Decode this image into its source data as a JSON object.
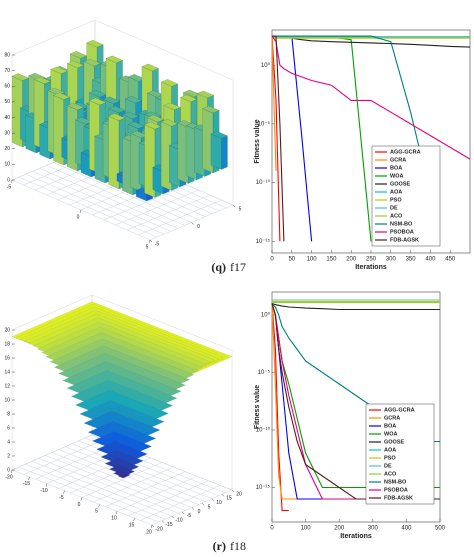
{
  "captions": [
    {
      "letter": "(q)",
      "text": "f17"
    },
    {
      "letter": "(r)",
      "text": "f18"
    }
  ],
  "chart_data": [
    {
      "type": "surface3d",
      "colormap": [
        "#352a87",
        "#0f5cdd",
        "#1aa6b7",
        "#7cbf7b",
        "#f9fb0e"
      ],
      "zlim": [
        0,
        80
      ],
      "zticks": [
        0,
        10,
        20,
        30,
        40,
        50,
        60,
        70,
        80
      ],
      "xlim": [
        -5,
        5
      ],
      "xticks": [
        -5,
        0,
        5
      ],
      "ylim": [
        -5,
        5
      ],
      "yticks": [
        -5,
        0,
        5
      ],
      "shape": "bars"
    },
    {
      "type": "line",
      "xlabel": "Iterations",
      "ylabel": "Fitness value",
      "log_y": true,
      "legend": "lower right",
      "x": [
        0,
        10,
        20,
        30,
        50,
        75,
        100,
        150,
        200,
        250,
        300,
        350,
        400,
        450,
        500
      ],
      "xlim": [
        0,
        500
      ],
      "xticks": [
        0,
        50,
        100,
        150,
        200,
        250,
        300,
        350,
        400,
        450
      ],
      "ylim": [
        1e-16,
        1000
      ],
      "yticks": [
        {
          "value": 1,
          "label": "10⁰"
        },
        {
          "value": 1e-05,
          "label": "10⁻⁵"
        },
        {
          "value": 1e-10,
          "label": "10⁻¹⁰"
        },
        {
          "value": 1e-15,
          "label": "10⁻¹⁵"
        }
      ],
      "series": [
        {
          "name": "AGG-GCRA",
          "color": "#ff0000",
          "values": [
            300,
            0.001,
            1e-15,
            null,
            null,
            null,
            null,
            null,
            null,
            null,
            null,
            null,
            null,
            null,
            null
          ]
        },
        {
          "name": "GCRA",
          "color": "#ff8c00",
          "values": [
            300,
            1e-09,
            null,
            null,
            null,
            null,
            null,
            null,
            null,
            null,
            null,
            null,
            null,
            null,
            null
          ]
        },
        {
          "name": "BOA",
          "color": "#0000ff",
          "values": [
            300,
            300,
            300,
            300,
            300,
            1e-06,
            1e-15,
            null,
            null,
            null,
            null,
            null,
            null,
            null,
            null
          ]
        },
        {
          "name": "WOA",
          "color": "#00a000",
          "values": [
            300,
            300,
            300,
            300,
            300,
            300,
            300,
            250,
            150,
            1e-15,
            null,
            null,
            null,
            null,
            null
          ]
        },
        {
          "name": "GOOSE",
          "color": "#222222",
          "values": [
            300,
            300,
            300,
            250,
            200,
            150,
            120,
            100,
            90,
            80,
            70,
            60,
            50,
            40,
            35
          ]
        },
        {
          "name": "AOA",
          "color": "#00c8c8",
          "values": [
            250,
            250,
            250,
            250,
            250,
            250,
            250,
            250,
            250,
            250,
            250,
            250,
            250,
            250,
            250
          ]
        },
        {
          "name": "PSO",
          "color": "#c8c800",
          "values": [
            200,
            200,
            200,
            200,
            200,
            200,
            200,
            200,
            200,
            200,
            200,
            200,
            200,
            200,
            200
          ]
        },
        {
          "name": "DE",
          "color": "#4dbeee",
          "values": [
            280,
            280,
            280,
            280,
            280,
            280,
            280,
            280,
            280,
            280,
            280,
            280,
            280,
            280,
            280
          ]
        },
        {
          "name": "ACO",
          "color": "#9acd32",
          "values": [
            220,
            220,
            220,
            220,
            220,
            220,
            220,
            220,
            220,
            220,
            220,
            220,
            220,
            220,
            220
          ]
        },
        {
          "name": "NSM-BO",
          "color": "#007f7f",
          "values": [
            300,
            300,
            300,
            300,
            300,
            300,
            300,
            300,
            300,
            300,
            100,
            0.0001,
            1e-11,
            null,
            null
          ]
        },
        {
          "name": "PSOBOA",
          "color": "#e6007e",
          "values": [
            300,
            100,
            1,
            0.5,
            0.2,
            0.1,
            0.05,
            0.02,
            0.001,
            0.001,
            0.0001,
            1e-05,
            1e-06,
            1e-07,
            1e-08
          ]
        },
        {
          "name": "FDB-AGSK",
          "color": "#5b1a1a",
          "values": [
            300,
            300,
            1e-05,
            1e-15,
            null,
            null,
            null,
            null,
            null,
            null,
            null,
            null,
            null,
            null,
            null
          ]
        }
      ]
    },
    {
      "type": "surface3d",
      "colormap": [
        "#352a87",
        "#0f5cdd",
        "#1aa6b7",
        "#7cbf7b",
        "#f9fb0e"
      ],
      "zlim": [
        0,
        20
      ],
      "zticks": [
        0,
        2,
        4,
        6,
        8,
        10,
        12,
        14,
        16,
        18,
        20
      ],
      "xlim": [
        -20,
        20
      ],
      "xticks": [
        -20,
        -15,
        -10,
        -5,
        0,
        5,
        10,
        15,
        20
      ],
      "ylim": [
        -20,
        20
      ],
      "yticks": [
        -20,
        -15,
        -10,
        -5,
        0,
        5,
        10,
        15,
        20
      ],
      "shape": "funnel"
    },
    {
      "type": "line",
      "xlabel": "Iterations",
      "ylabel": "Fitness value",
      "log_y": true,
      "legend": "lower right",
      "x": [
        0,
        10,
        20,
        30,
        50,
        75,
        100,
        150,
        200,
        250,
        300,
        350,
        400,
        450,
        500
      ],
      "xlim": [
        0,
        500
      ],
      "xticks": [
        0,
        100,
        200,
        300,
        400,
        500
      ],
      "ylim": [
        1e-18,
        100
      ],
      "yticks": [
        {
          "value": 1,
          "label": "10⁰"
        },
        {
          "value": 1e-05,
          "label": "10⁻⁵"
        },
        {
          "value": 1e-10,
          "label": "10⁻¹⁰"
        },
        {
          "value": 1e-15,
          "label": "10⁻¹⁵"
        }
      ],
      "series": [
        {
          "name": "AGG-GCRA",
          "color": "#ff0000",
          "values": [
            10,
            0.001,
            1e-12,
            1e-17,
            1e-17,
            null,
            null,
            null,
            null,
            null,
            null,
            null,
            null,
            null,
            null
          ]
        },
        {
          "name": "GCRA",
          "color": "#ff8c00",
          "values": [
            10,
            1e-06,
            1e-14,
            1e-16,
            1e-16,
            1e-16,
            1e-16,
            null,
            null,
            null,
            null,
            null,
            null,
            null,
            null
          ]
        },
        {
          "name": "BOA",
          "color": "#0000ff",
          "values": [
            10,
            1,
            0.001,
            1e-06,
            1e-12,
            1e-16,
            1e-16,
            1e-16,
            1e-16,
            1e-16,
            1e-16,
            1e-16,
            1e-16,
            1e-16,
            1e-16
          ]
        },
        {
          "name": "WOA",
          "color": "#00a000",
          "values": [
            10,
            1,
            0.01,
            0.0001,
            1e-06,
            1e-09,
            1e-12,
            1e-15,
            1e-15,
            1e-15,
            1e-15,
            1e-15,
            1e-15,
            1e-15,
            1e-15
          ]
        },
        {
          "name": "GOOSE",
          "color": "#222222",
          "values": [
            10,
            8,
            7,
            6,
            5,
            4.5,
            4,
            3.5,
            3,
            3,
            3,
            3,
            3,
            3,
            3
          ]
        },
        {
          "name": "AOA",
          "color": "#00c8c8",
          "values": [
            20,
            20,
            20,
            20,
            20,
            20,
            20,
            20,
            20,
            20,
            20,
            20,
            20,
            20,
            20
          ]
        },
        {
          "name": "PSO",
          "color": "#c8c800",
          "values": [
            15,
            15,
            15,
            15,
            15,
            15,
            15,
            15,
            15,
            15,
            15,
            15,
            15,
            15,
            15
          ]
        },
        {
          "name": "DE",
          "color": "#4dbeee",
          "values": [
            20,
            20,
            20,
            20,
            20,
            20,
            20,
            20,
            20,
            20,
            20,
            20,
            20,
            20,
            20
          ]
        },
        {
          "name": "ACO",
          "color": "#9acd32",
          "values": [
            12,
            12,
            12,
            12,
            12,
            12,
            12,
            12,
            12,
            12,
            12,
            12,
            12,
            12,
            12
          ]
        },
        {
          "name": "NSM-BO",
          "color": "#007f7f",
          "values": [
            10,
            5,
            1,
            0.1,
            0.01,
            0.001,
            0.0001,
            1e-05,
            1e-06,
            1e-07,
            1e-08,
            1e-09,
            1e-10,
            1e-11,
            1e-11
          ]
        },
        {
          "name": "PSOBOA",
          "color": "#e6007e",
          "values": [
            10,
            1,
            0.01,
            0.0001,
            1e-07,
            1e-10,
            1e-13,
            1e-16,
            1e-16,
            1e-16,
            1e-16,
            1e-16,
            1e-16,
            1e-16,
            1e-16
          ]
        },
        {
          "name": "FDB-AGSK",
          "color": "#5b1a1a",
          "values": [
            10,
            1,
            0.001,
            1e-05,
            1e-08,
            1e-11,
            1e-13,
            1e-14,
            1e-15,
            1e-16,
            1e-16,
            1e-16,
            1e-16,
            1e-16,
            1e-16
          ]
        }
      ]
    }
  ]
}
